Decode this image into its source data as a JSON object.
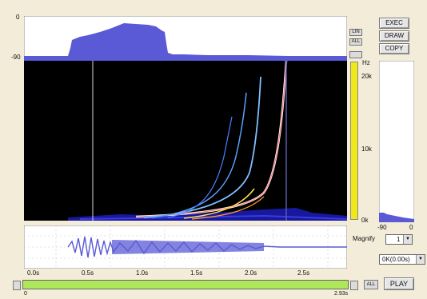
{
  "amplitude_top": "0",
  "amplitude_bottom": "-90",
  "buttons": {
    "exec": "EXEC",
    "draw": "DRAW",
    "copy": "COPY",
    "play": "PLAY",
    "all": "ALL"
  },
  "mini_buttons": [
    "LIN",
    "ALL"
  ],
  "freq_labels": [
    "Hz",
    "20k",
    "10k",
    "0k"
  ],
  "spectrum_labels": [
    "-90",
    "0"
  ],
  "time_labels": [
    "0.0s",
    "0.5s",
    "1.0s",
    "1.5s",
    "2.0s",
    "2.5s"
  ],
  "magnify_label": "Magnify",
  "magnify_value": "1",
  "window_value": "0K(0.00s)",
  "scroll_right_label": "2.93s",
  "scroll_left_label": "0",
  "colors": {
    "waveform": "#5a5ad6",
    "spectrogram_bg": "#000000",
    "level_bar": "#f0e81a",
    "scroll_track": "#aee85a"
  }
}
